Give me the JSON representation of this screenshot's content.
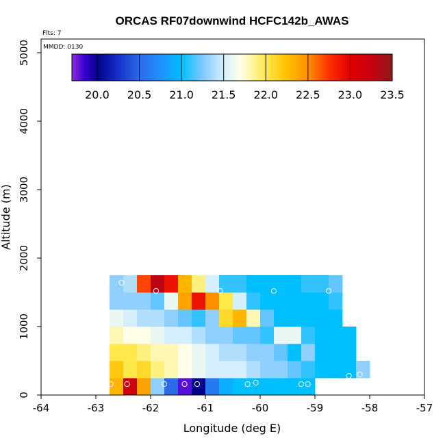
{
  "chart_data": {
    "type": "heatmap",
    "title": "ORCAS RF07downwind HCFC142b_AWAS",
    "annotations": {
      "flights": "Flts: 7",
      "date": "MMDD: 0130"
    },
    "xlabel": "Longitude (deg E)",
    "ylabel": "Altitude (m)",
    "xlim": [
      -64,
      -57
    ],
    "ylim": [
      0,
      5200
    ],
    "x_ticks": [
      -64,
      -63,
      -62,
      -61,
      -60,
      -59,
      -58,
      -57
    ],
    "x_tick_labels": [
      "-64",
      "-63",
      "-62",
      "-61",
      "-60",
      "-59",
      "-58",
      "-57"
    ],
    "y_ticks": [
      0,
      1000,
      2000,
      3000,
      4000,
      5000
    ],
    "y_tick_labels": [
      "0",
      "1000",
      "2000",
      "3000",
      "4000",
      "5000"
    ],
    "colorbar": {
      "min": 19.7,
      "max": 23.5,
      "ticks": [
        20.0,
        20.5,
        21.0,
        21.5,
        22.0,
        22.5,
        23.0,
        23.5
      ],
      "tick_labels": [
        "20.0",
        "20.5",
        "21.0",
        "21.5",
        "22.0",
        "22.5",
        "23.0",
        "23.5"
      ],
      "stops": [
        [
          19.7,
          "#8a2be2"
        ],
        [
          19.85,
          "#3a00d0"
        ],
        [
          20.0,
          "#00008b"
        ],
        [
          20.25,
          "#1530c8"
        ],
        [
          20.5,
          "#2b6ae8"
        ],
        [
          20.75,
          "#1e90ff"
        ],
        [
          21.0,
          "#00bfff"
        ],
        [
          21.25,
          "#7ec8ff"
        ],
        [
          21.5,
          "#d6efff"
        ],
        [
          21.7,
          "#ffffe8"
        ],
        [
          22.0,
          "#ffe84a"
        ],
        [
          22.25,
          "#ffc000"
        ],
        [
          22.5,
          "#ff9000"
        ],
        [
          22.75,
          "#ff3000"
        ],
        [
          23.0,
          "#e00000"
        ],
        [
          23.25,
          "#c80010"
        ],
        [
          23.5,
          "#8b1a1a"
        ]
      ]
    },
    "grid_x_start": -62.75,
    "grid_dx": 0.25,
    "grid_y_start": 0,
    "grid_dy": 250,
    "grid_values": [
      [
        22.3,
        23.2,
        22.4,
        21.3,
        20.5,
        19.8,
        20.0,
        20.6,
        20.9,
        21.0,
        21.0,
        21.0,
        21.0,
        21.0,
        21.0
      ],
      [
        22.2,
        22.0,
        22.1,
        21.9,
        21.8,
        21.7,
        21.6,
        21.5,
        21.5,
        21.5,
        21.4,
        21.3,
        21.3,
        21.2,
        21.1,
        21.0,
        21.0,
        21.0,
        21.3
      ],
      [
        22.0,
        22.0,
        21.9,
        21.8,
        21.8,
        21.7,
        21.6,
        21.5,
        21.4,
        21.4,
        21.3,
        21.3,
        21.2,
        21.0,
        21.3,
        21.0,
        21.0,
        21.0
      ],
      [
        21.8,
        21.7,
        21.7,
        21.6,
        21.5,
        21.5,
        21.4,
        21.3,
        21.3,
        21.2,
        21.2,
        21.1,
        21.6,
        21.6,
        21.1,
        21.0,
        21.0,
        21.0
      ],
      [
        21.6,
        21.5,
        21.4,
        21.4,
        21.3,
        21.2,
        21.1,
        21.3,
        22.1,
        22.3,
        21.8,
        21.2,
        21.0,
        21.0,
        21.0,
        21.0,
        21.0
      ],
      [
        21.3,
        21.3,
        21.3,
        21.2,
        21.6,
        22.4,
        22.9,
        22.5,
        22.0,
        21.5,
        21.1,
        21.0,
        21.0,
        21.0,
        21.0,
        21.0,
        21.1
      ],
      [
        21.3,
        21.4,
        22.7,
        23.3,
        22.9,
        22.3,
        21.9,
        21.5,
        21.1,
        21.1,
        21.0,
        21.0,
        21.0,
        21.0,
        21.1,
        21.1,
        21.2
      ]
    ],
    "sample_points": [
      {
        "lon": -62.73,
        "alt": 160
      },
      {
        "lon": -62.43,
        "alt": 160
      },
      {
        "lon": -61.75,
        "alt": 160
      },
      {
        "lon": -61.38,
        "alt": 160
      },
      {
        "lon": -61.15,
        "alt": 160
      },
      {
        "lon": -60.23,
        "alt": 160
      },
      {
        "lon": -60.08,
        "alt": 180
      },
      {
        "lon": -59.25,
        "alt": 160
      },
      {
        "lon": -59.13,
        "alt": 160
      },
      {
        "lon": -58.38,
        "alt": 280
      },
      {
        "lon": -58.18,
        "alt": 300
      },
      {
        "lon": -62.53,
        "alt": 1640
      },
      {
        "lon": -61.9,
        "alt": 1520
      },
      {
        "lon": -60.73,
        "alt": 1520
      },
      {
        "lon": -59.75,
        "alt": 1520
      },
      {
        "lon": -58.75,
        "alt": 1520
      }
    ]
  }
}
